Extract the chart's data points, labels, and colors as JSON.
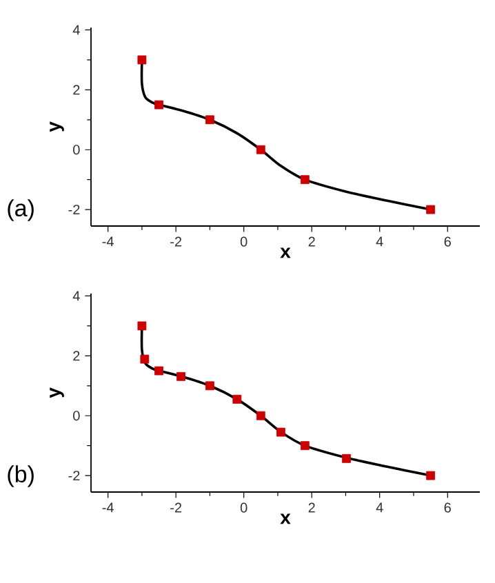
{
  "chart_data": [
    {
      "type": "line",
      "xlabel": "x",
      "ylabel": "y",
      "annotations": [
        "(a)"
      ],
      "xlim": [
        -4.5,
        6.95
      ],
      "ylim": [
        -2.55,
        4.08
      ],
      "xticks": [
        -4,
        -2,
        0,
        2,
        4,
        6
      ],
      "yticks": [
        -2,
        0,
        2,
        4
      ],
      "series": [
        {
          "color": "#000000",
          "line_style": "solid",
          "x": [
            -3,
            -3,
            -2.9,
            -2.7,
            -2.5,
            -1.8,
            -1,
            -0.2,
            0.5,
            1.1,
            1.8,
            3,
            4.2,
            5.5
          ],
          "values": [
            3,
            2.2,
            1.75,
            1.58,
            1.5,
            1.3,
            1,
            0.55,
            0,
            -0.55,
            -1,
            -1.4,
            -1.7,
            -2
          ]
        },
        {
          "type": "scatter",
          "color": "#cc0000",
          "marker": "square",
          "x": [
            -3,
            -2.5,
            -1,
            0.5,
            1.8,
            5.5
          ],
          "values": [
            3,
            1.5,
            1,
            0,
            -1,
            -2
          ]
        }
      ]
    },
    {
      "type": "line",
      "xlabel": "x",
      "ylabel": "y",
      "annotations": [
        "(b)"
      ],
      "xlim": [
        -4.5,
        6.95
      ],
      "ylim": [
        -2.55,
        4.08
      ],
      "xticks": [
        -4,
        -2,
        0,
        2,
        4,
        6
      ],
      "yticks": [
        -2,
        0,
        2,
        4
      ],
      "series": [
        {
          "color": "#000000",
          "line_style": "solid",
          "x": [
            -3,
            -3,
            -2.9,
            -2.7,
            -2.5,
            -1.8,
            -1,
            -0.2,
            0.5,
            1.1,
            1.8,
            3,
            4.2,
            5.5
          ],
          "values": [
            3,
            2.2,
            1.75,
            1.58,
            1.5,
            1.3,
            1,
            0.55,
            0,
            -0.55,
            -1,
            -1.4,
            -1.7,
            -2
          ]
        },
        {
          "type": "scatter",
          "color": "#cc0000",
          "marker": "square",
          "x": [
            -3,
            -2.92,
            -2.5,
            -1.85,
            -1,
            -0.2,
            0.5,
            1.09,
            1.8,
            3.02,
            5.5
          ],
          "values": [
            3,
            1.89,
            1.5,
            1.31,
            1,
            0.55,
            0,
            -0.55,
            -1,
            -1.43,
            -2
          ]
        }
      ]
    }
  ]
}
